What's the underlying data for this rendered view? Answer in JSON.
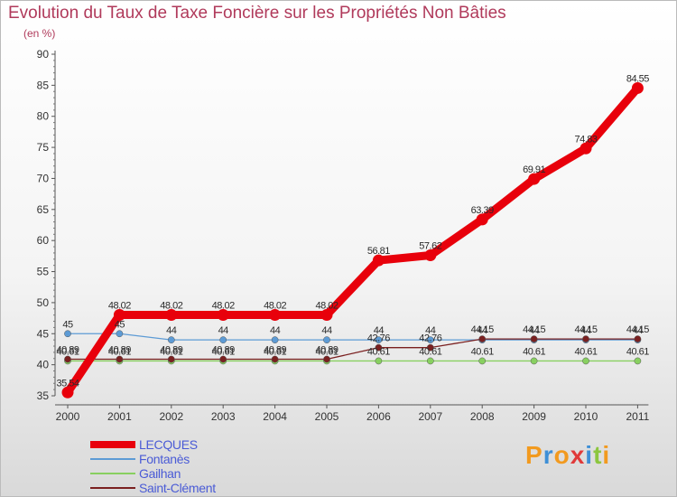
{
  "title": "Evolution du Taux de Taxe Foncière sur les Propriétés Non Bâties",
  "unit_label": "(en %)",
  "logo_text": "Proxiti",
  "chart_data": {
    "type": "line",
    "title": "Evolution du Taux de Taxe Foncière sur les Propriétés Non Bâties",
    "ylabel": "(en %)",
    "xlabel": "",
    "x": [
      "2000",
      "2001",
      "2002",
      "2003",
      "2004",
      "2005",
      "2006",
      "2007",
      "2008",
      "2009",
      "2010",
      "2011"
    ],
    "ylim": [
      35,
      90
    ],
    "yticks": [
      "35",
      "40",
      "45",
      "50",
      "55",
      "60",
      "65",
      "70",
      "75",
      "80",
      "85",
      "90"
    ],
    "grid": false,
    "legend_position": "bottom-left",
    "series": [
      {
        "name": "LECQUES",
        "color": "#e8000b",
        "width": "thick",
        "values": [
          35.54,
          48.02,
          48.02,
          48.02,
          48.02,
          48.02,
          56.81,
          57.62,
          63.39,
          69.91,
          74.83,
          84.55
        ],
        "labels": [
          "35.54",
          "48.02",
          "48.02",
          "48.02",
          "48.02",
          "48.02",
          "56.81",
          "57.62",
          "63.39",
          "69.91",
          "74.83",
          "84.55"
        ]
      },
      {
        "name": "Fontanès",
        "color": "#5d9bd5",
        "width": "thin",
        "values": [
          45,
          45,
          44,
          44,
          44,
          44,
          44,
          44,
          44,
          44,
          44,
          44
        ],
        "labels": [
          "45",
          "45",
          "44",
          "44",
          "44",
          "44",
          "44",
          "44",
          "44",
          "44",
          "44",
          "44"
        ]
      },
      {
        "name": "Gailhan",
        "color": "#88d060",
        "width": "thin",
        "values": [
          40.61,
          40.61,
          40.61,
          40.61,
          40.61,
          40.61,
          40.61,
          40.61,
          40.61,
          40.61,
          40.61,
          40.61
        ],
        "labels": [
          "40.61",
          "40.61",
          "40.61",
          "40.61",
          "40.61",
          "40.61",
          "40.61",
          "40.61",
          "40.61",
          "40.61",
          "40.61",
          "40.61"
        ]
      },
      {
        "name": "Saint-Clément",
        "color": "#7a2020",
        "width": "thin",
        "values": [
          40.89,
          40.89,
          40.89,
          40.89,
          40.89,
          40.89,
          42.76,
          42.76,
          44.15,
          44.15,
          44.15,
          44.15
        ],
        "labels": [
          "40.89",
          "40.89",
          "40.89",
          "40.89",
          "40.89",
          "40.89",
          "42.76",
          "42.76",
          "44.15",
          "44.15",
          "44.15",
          "44.15"
        ]
      }
    ]
  }
}
